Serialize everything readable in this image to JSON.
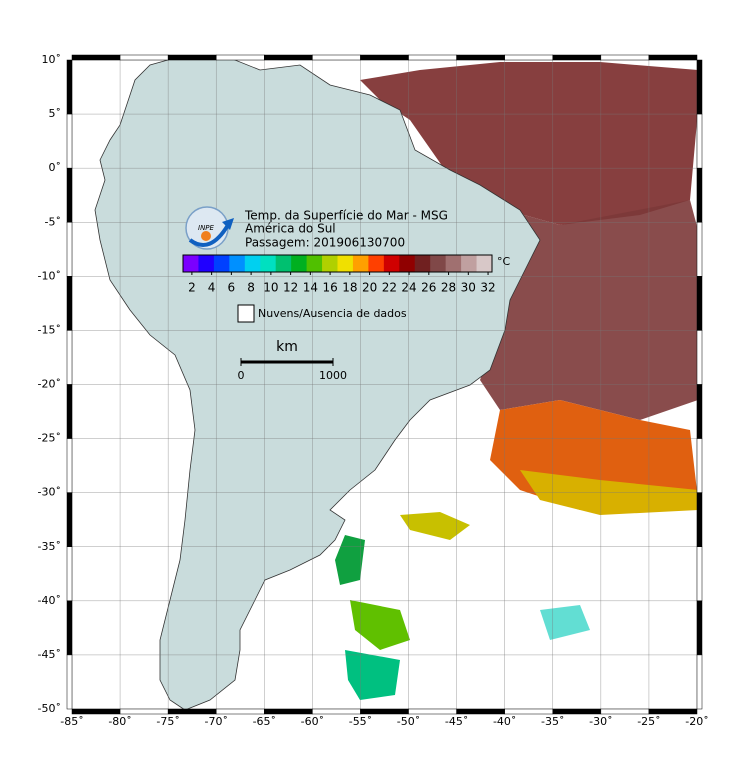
{
  "map": {
    "lon_ticks": [
      {
        "value": -85,
        "label": "-85˚"
      },
      {
        "value": -80,
        "label": "-80˚"
      },
      {
        "value": -75,
        "label": "-75˚"
      },
      {
        "value": -70,
        "label": "-70˚"
      },
      {
        "value": -65,
        "label": "-65˚"
      },
      {
        "value": -60,
        "label": "-60˚"
      },
      {
        "value": -55,
        "label": "-55˚"
      },
      {
        "value": -50,
        "label": "-50˚"
      },
      {
        "value": -45,
        "label": "-45˚"
      },
      {
        "value": -40,
        "label": "-40˚"
      },
      {
        "value": -35,
        "label": "-35˚"
      },
      {
        "value": -30,
        "label": "-30˚"
      },
      {
        "value": -25,
        "label": "-25˚"
      },
      {
        "value": -20,
        "label": "-20˚"
      }
    ],
    "lat_ticks": [
      {
        "value": 10,
        "label": "10˚"
      },
      {
        "value": 5,
        "label": "5˚"
      },
      {
        "value": 0,
        "label": "0˚"
      },
      {
        "value": -5,
        "label": "-5˚"
      },
      {
        "value": -10,
        "label": "-10˚"
      },
      {
        "value": -15,
        "label": "-15˚"
      },
      {
        "value": -20,
        "label": "-20˚"
      },
      {
        "value": -25,
        "label": "-25˚"
      },
      {
        "value": -30,
        "label": "-30˚"
      },
      {
        "value": -35,
        "label": "-35˚"
      },
      {
        "value": -40,
        "label": "-40˚"
      },
      {
        "value": -45,
        "label": "-45˚"
      },
      {
        "value": -50,
        "label": "-50˚"
      }
    ],
    "land_color": "#c9dcdc"
  },
  "legend": {
    "title_lines": [
      "Temp. da Superfície do Mar - MSG",
      "América do Sul",
      "Passagem: 201906130700"
    ],
    "logo_text": "INPE"
  },
  "colorbar": {
    "ticks": [
      2,
      4,
      6,
      8,
      10,
      12,
      14,
      16,
      18,
      20,
      22,
      24,
      26,
      28,
      30,
      32
    ],
    "lim": [
      1.1,
      32.4
    ],
    "unit": "°C",
    "colors": [
      "#7a00ff",
      "#2000ff",
      "#0040ff",
      "#0090ff",
      "#00d0f0",
      "#00e0c0",
      "#00c070",
      "#00b020",
      "#50c000",
      "#b0d000",
      "#f0e000",
      "#ffa000",
      "#ff4000",
      "#d00000",
      "#900000",
      "#702020",
      "#804848",
      "#a07070",
      "#c0a0a0",
      "#d8c8c8"
    ]
  },
  "clouds_label": "Nuvens/Ausencia de dados",
  "scale_bar": {
    "unit": "km",
    "ticks": [
      0,
      1000
    ]
  }
}
